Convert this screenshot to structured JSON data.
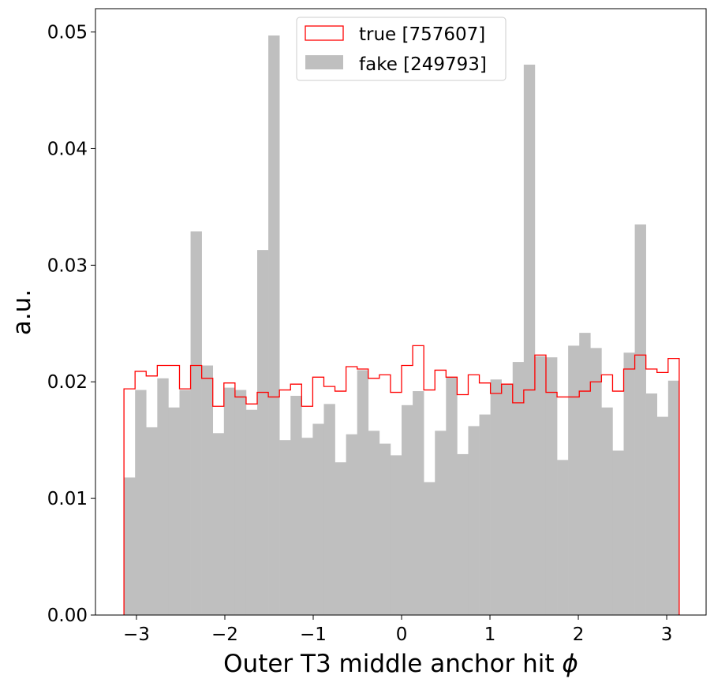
{
  "chart_data": {
    "type": "bar",
    "subtype": "histogram",
    "title": "",
    "xlabel": "Outer T3 middle anchor hit ϕ",
    "xlabel_main": "Outer T3 middle anchor hit ",
    "xlabel_symbol": "ϕ",
    "ylabel": "a.u.",
    "xlim": [
      -3.464,
      3.446
    ],
    "ylim": [
      0,
      0.052
    ],
    "bin_range": [
      -3.14159,
      3.14159
    ],
    "n_bins": 50,
    "xticks": [
      -3,
      -2,
      -1,
      0,
      1,
      2,
      3
    ],
    "xtick_labels": [
      "−3",
      "−2",
      "−1",
      "0",
      "1",
      "2",
      "3"
    ],
    "yticks": [
      0,
      0.01,
      0.02,
      0.03,
      0.04,
      0.05
    ],
    "ytick_labels": [
      "0.00",
      "0.01",
      "0.02",
      "0.03",
      "0.04",
      "0.05"
    ],
    "grid": false,
    "legend_position": "upper-center",
    "series": [
      {
        "name": "true [757607]",
        "style": "step",
        "color": "#ff0000",
        "values": [
          0.0194,
          0.0209,
          0.0205,
          0.0214,
          0.0214,
          0.0194,
          0.0214,
          0.0203,
          0.0179,
          0.0199,
          0.0187,
          0.0181,
          0.0191,
          0.0187,
          0.0193,
          0.0198,
          0.0179,
          0.0204,
          0.0196,
          0.0192,
          0.0213,
          0.0211,
          0.0203,
          0.0206,
          0.0191,
          0.0214,
          0.0231,
          0.0193,
          0.021,
          0.0204,
          0.0189,
          0.0206,
          0.0199,
          0.019,
          0.0198,
          0.0182,
          0.0193,
          0.0223,
          0.0191,
          0.0187,
          0.0187,
          0.0192,
          0.02,
          0.0206,
          0.0192,
          0.0211,
          0.0223,
          0.0211,
          0.0208,
          0.022
        ]
      },
      {
        "name": "fake [249793]",
        "style": "filled",
        "color": "#bfbfbf",
        "values": [
          0.0118,
          0.0193,
          0.0161,
          0.0203,
          0.0178,
          0.0193,
          0.0329,
          0.0214,
          0.0156,
          0.0195,
          0.0193,
          0.0176,
          0.0313,
          0.0497,
          0.015,
          0.0188,
          0.0152,
          0.0164,
          0.0181,
          0.0131,
          0.0155,
          0.021,
          0.0158,
          0.0147,
          0.0137,
          0.018,
          0.0192,
          0.0114,
          0.0158,
          0.0204,
          0.0138,
          0.0162,
          0.0172,
          0.0202,
          0.0198,
          0.0217,
          0.0472,
          0.0222,
          0.0221,
          0.0133,
          0.0231,
          0.0242,
          0.0229,
          0.0178,
          0.0141,
          0.0225,
          0.0335,
          0.019,
          0.017,
          0.0201
        ]
      }
    ]
  }
}
